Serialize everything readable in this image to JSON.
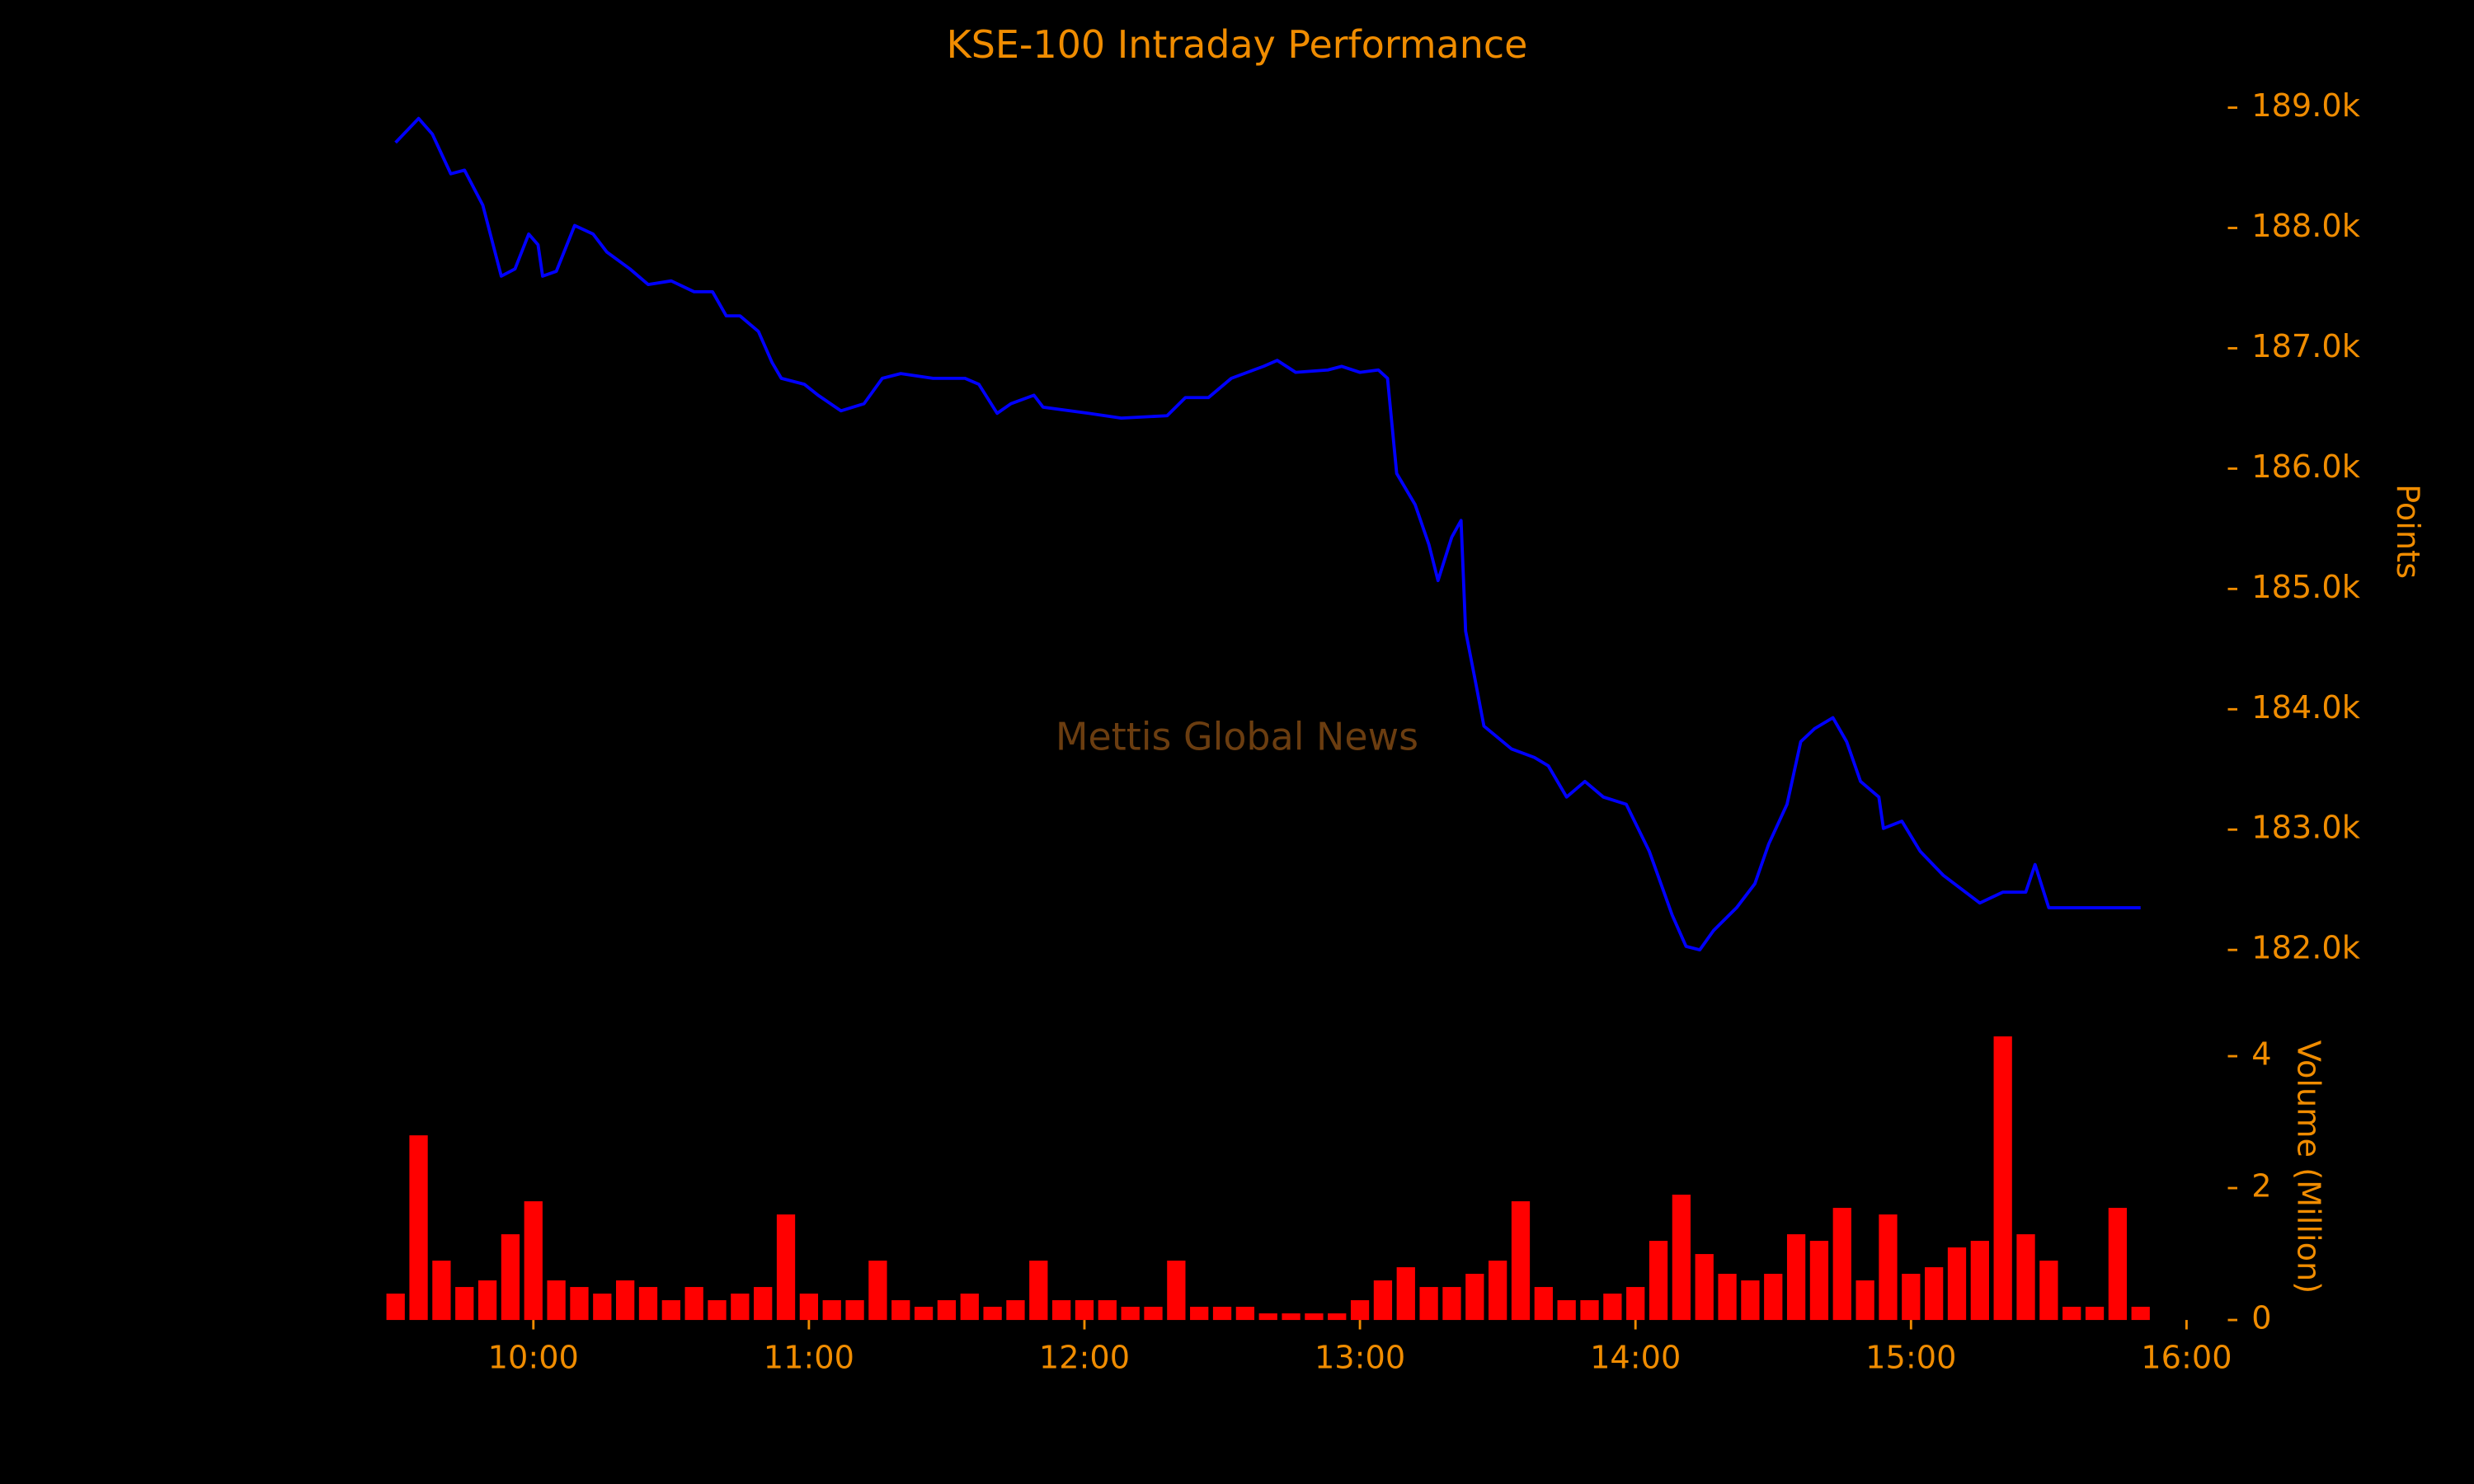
{
  "chart_data": [
    {
      "type": "line",
      "title": "KSE-100 Intraday Performance",
      "annotation": "Mettis Global News",
      "y_label": "Points",
      "color": "#0000ff",
      "x": [
        "09:30",
        "09:35",
        "09:38",
        "09:42",
        "09:45",
        "09:49",
        "09:53",
        "09:56",
        "09:59",
        "10:01",
        "10:02",
        "10:05",
        "10:09",
        "10:13",
        "10:16",
        "10:21",
        "10:25",
        "10:30",
        "10:35",
        "10:39",
        "10:42",
        "10:45",
        "10:49",
        "10:52",
        "10:54",
        "10:59",
        "11:02",
        "11:07",
        "11:12",
        "11:16",
        "11:20",
        "11:27",
        "11:34",
        "11:37",
        "11:41",
        "11:44",
        "11:49",
        "11:51",
        "12:01",
        "12:08",
        "12:18",
        "12:22",
        "12:27",
        "12:32",
        "12:39",
        "12:42",
        "12:46",
        "12:53",
        "12:56",
        "13:00",
        "13:04",
        "13:06",
        "13:08",
        "13:12",
        "13:15",
        "13:17",
        "13:20",
        "13:22",
        "13:23",
        "13:25",
        "13:27",
        "13:33",
        "13:38",
        "13:41",
        "13:45",
        "13:49",
        "13:53",
        "13:58",
        "14:03",
        "14:08",
        "14:11",
        "14:14",
        "14:17",
        "14:22",
        "14:26",
        "14:29",
        "14:33",
        "14:36",
        "14:39",
        "14:43",
        "14:46",
        "14:49",
        "14:53",
        "14:54",
        "14:58",
        "15:02",
        "15:07",
        "15:15",
        "15:20",
        "15:25",
        "15:27",
        "15:30",
        "15:50"
      ],
      "values": [
        188710,
        188910,
        188780,
        188450,
        188480,
        188190,
        187600,
        187660,
        187950,
        187860,
        187600,
        187640,
        188020,
        187950,
        187800,
        187660,
        187530,
        187560,
        187470,
        187470,
        187270,
        187270,
        187140,
        186880,
        186750,
        186700,
        186610,
        186480,
        186540,
        186750,
        186790,
        186750,
        186750,
        186700,
        186460,
        186540,
        186610,
        186510,
        186460,
        186420,
        186440,
        186590,
        186590,
        186750,
        186850,
        186900,
        186800,
        186820,
        186850,
        186800,
        186820,
        186750,
        185960,
        185700,
        185370,
        185070,
        185430,
        185570,
        184650,
        184260,
        183860,
        183670,
        183600,
        183530,
        183270,
        183400,
        183270,
        183210,
        182820,
        182290,
        182030,
        182000,
        182160,
        182350,
        182550,
        182880,
        183210,
        183730,
        183840,
        183930,
        183730,
        183400,
        183270,
        183010,
        183070,
        182820,
        182620,
        182390,
        182480,
        182480,
        182710,
        182350,
        182350
      ],
      "xlim": [
        "09:27",
        "16:09"
      ],
      "ylim": [
        181800,
        189200
      ],
      "yticks": [
        {
          "value": 182000,
          "label": "182.0k"
        },
        {
          "value": 183000,
          "label": "183.0k"
        },
        {
          "value": 184000,
          "label": "184.0k"
        },
        {
          "value": 185000,
          "label": "185.0k"
        },
        {
          "value": 186000,
          "label": "186.0k"
        },
        {
          "value": 187000,
          "label": "187.0k"
        },
        {
          "value": 188000,
          "label": "188.0k"
        },
        {
          "value": 189000,
          "label": "189.0k"
        }
      ],
      "grid": false
    },
    {
      "type": "bar",
      "y_label": "Volume (Million)",
      "color": "#ff0000",
      "x": [
        "09:30",
        "09:35",
        "09:40",
        "09:45",
        "09:50",
        "09:55",
        "10:00",
        "10:05",
        "10:10",
        "10:15",
        "10:20",
        "10:25",
        "10:30",
        "10:35",
        "10:40",
        "10:45",
        "10:50",
        "10:55",
        "11:00",
        "11:05",
        "11:10",
        "11:15",
        "11:20",
        "11:25",
        "11:30",
        "11:35",
        "11:40",
        "11:45",
        "11:50",
        "11:55",
        "12:00",
        "12:05",
        "12:10",
        "12:15",
        "12:20",
        "12:25",
        "12:30",
        "12:35",
        "12:40",
        "12:45",
        "12:50",
        "12:55",
        "13:00",
        "13:05",
        "13:10",
        "13:15",
        "13:20",
        "13:25",
        "13:30",
        "13:35",
        "13:40",
        "13:45",
        "13:50",
        "13:55",
        "14:00",
        "14:05",
        "14:10",
        "14:15",
        "14:20",
        "14:25",
        "14:30",
        "14:35",
        "14:40",
        "14:45",
        "14:50",
        "14:55",
        "15:00",
        "15:05",
        "15:10",
        "15:15",
        "15:20",
        "15:25",
        "15:30",
        "15:35",
        "15:40",
        "15:45",
        "15:50"
      ],
      "values": [
        0.4,
        2.8,
        0.9,
        0.5,
        0.6,
        1.3,
        1.8,
        0.6,
        0.5,
        0.4,
        0.6,
        0.5,
        0.3,
        0.5,
        0.3,
        0.4,
        0.5,
        1.6,
        0.4,
        0.3,
        0.3,
        0.9,
        0.3,
        0.2,
        0.3,
        0.4,
        0.2,
        0.3,
        0.9,
        0.3,
        0.3,
        0.3,
        0.2,
        0.2,
        0.9,
        0.2,
        0.2,
        0.2,
        0.1,
        0.1,
        0.1,
        0.1,
        0.3,
        0.6,
        0.8,
        0.5,
        0.5,
        0.7,
        0.9,
        1.8,
        0.5,
        0.3,
        0.3,
        0.4,
        0.5,
        1.2,
        1.9,
        1.0,
        0.7,
        0.6,
        0.7,
        1.3,
        1.2,
        1.7,
        0.6,
        1.6,
        0.7,
        0.8,
        1.1,
        1.2,
        4.3,
        1.3,
        0.9,
        0.2,
        0.2,
        1.7,
        0.2
      ],
      "xlim": [
        "09:27",
        "16:09"
      ],
      "ylim": [
        0,
        4.4
      ],
      "yticks": [
        0,
        2,
        4
      ],
      "xticks": [
        "10:00",
        "11:00",
        "12:00",
        "13:00",
        "14:00",
        "15:00",
        "16:00"
      ],
      "grid": false
    }
  ]
}
